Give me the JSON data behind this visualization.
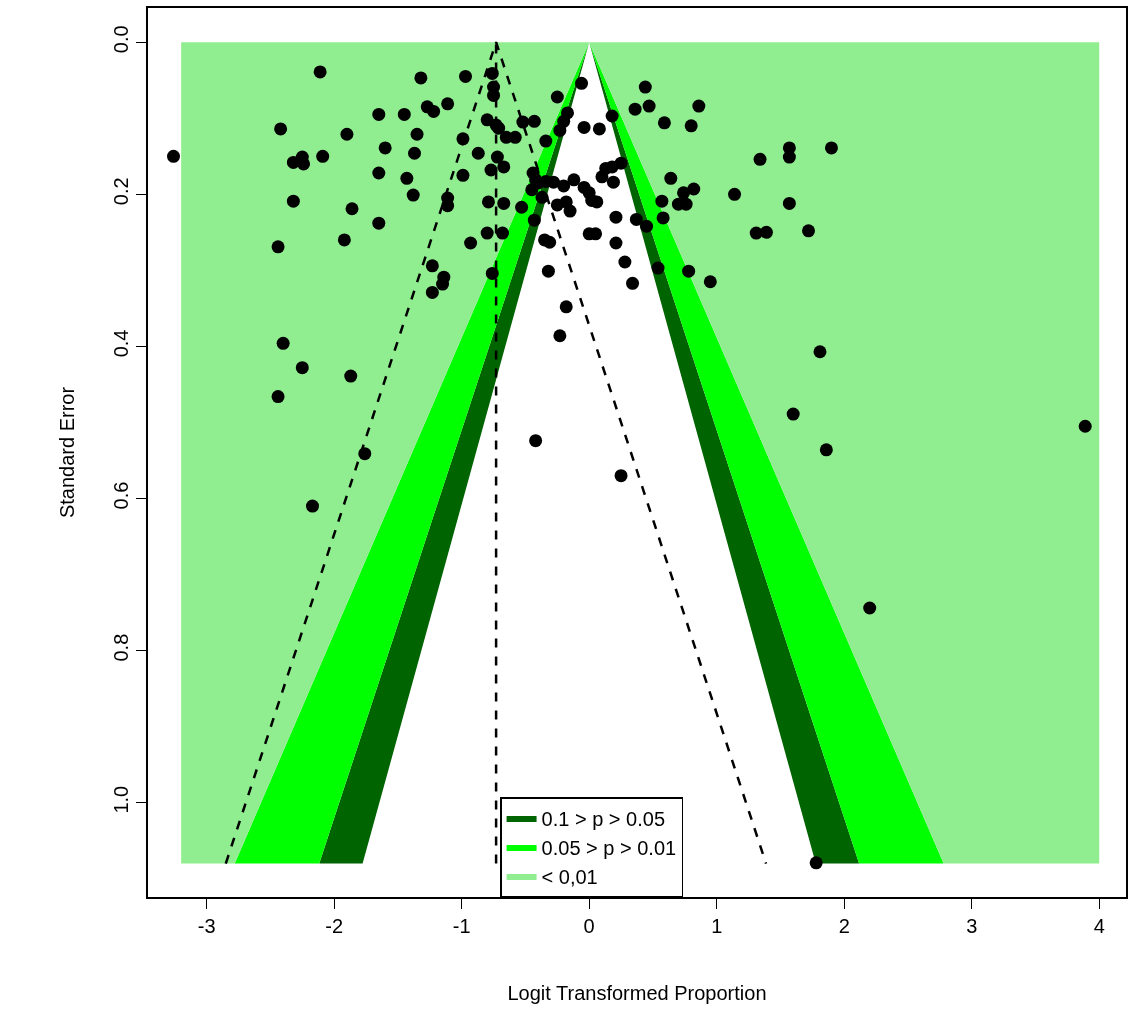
{
  "chart_data": {
    "type": "scatter",
    "xlabel": "Logit Transformed Proportion",
    "ylabel": "Standard Error",
    "xlim": [
      -3.46,
      4.21
    ],
    "ylim": [
      1.124,
      -0.045
    ],
    "xticks": [
      -3,
      -2,
      -1,
      0,
      1,
      2,
      3,
      4
    ],
    "yticks": [
      {
        "value": 0,
        "label": "0.0"
      },
      {
        "value": 0.2,
        "label": "0.2"
      },
      {
        "value": 0.4,
        "label": "0.4"
      },
      {
        "value": 0.6,
        "label": "0.6"
      },
      {
        "value": 0.8,
        "label": "0.8"
      },
      {
        "value": 1.0,
        "label": "1.0"
      }
    ],
    "legend": "bottom",
    "series": [
      {
        "type": "area",
        "name": "0.1 > p > 0.05",
        "color": "#006400",
        "x": [
          0,
          -2.117,
          -1.777,
          0,
          1.777,
          2.117,
          0
        ],
        "values": [
          0,
          1.08,
          1.08,
          0,
          1.08,
          1.08,
          0
        ]
      },
      {
        "type": "area",
        "name": "0.05 > p > 0.01",
        "color": "#00ff00",
        "x": [
          0,
          -2.78,
          -2.117,
          0,
          2.117,
          2.78,
          0
        ],
        "values": [
          0,
          1.08,
          1.08,
          0,
          1.08,
          1.08,
          0
        ]
      },
      {
        "type": "area",
        "name": "< 0,01",
        "color": "#90ee90",
        "x": [
          -3.2,
          -3.2,
          4.0,
          4.0,
          2.78,
          0,
          -2.78,
          -3.2
        ],
        "values": [
          1.08,
          0,
          0,
          1.08,
          1.08,
          0,
          1.08,
          1.08
        ]
      },
      {
        "type": "line",
        "color": "#000000",
        "line_style": "dashed",
        "x": [
          -2.85,
          -0.73,
          1.387
        ],
        "values": [
          1.08,
          0,
          1.08
        ]
      },
      {
        "type": "line",
        "color": "#000000",
        "line_style": "dashed",
        "x": [
          -0.73,
          -0.73
        ],
        "values": [
          1.08,
          0
        ]
      },
      {
        "color": "#000000",
        "marker": "circle",
        "x": [
          -2.11,
          -1.32,
          -1.27,
          -1.22,
          -1.11,
          -1.65,
          -1.45,
          -2.42,
          -1.9,
          -1.35,
          -1.6,
          -1.37,
          -3.26,
          -2.32,
          -2.25,
          -2.24,
          -2.09,
          -1.65,
          -1.43,
          -1.38,
          -2.32,
          -1.86,
          -1.65,
          -1.92,
          -2.44,
          -1.23,
          -1.14,
          -1.15,
          -1.23,
          -2.4,
          -2.25,
          -2.44,
          -1.87,
          -1.76,
          -2.17,
          -1.11,
          -1.11,
          -0.76,
          -0.97,
          -0.75,
          -0.75,
          -0.06,
          0.44,
          -0.25,
          -0.17,
          -0.2,
          -0.23,
          -0.8,
          -0.73,
          -0.71,
          -0.52,
          -0.43,
          -0.65,
          -0.58,
          -0.99,
          -0.34,
          -0.04,
          0.08,
          0.18,
          0.36,
          0.47,
          0.59,
          0.8,
          0.86,
          -0.87,
          -0.72,
          -0.77,
          -0.67,
          -0.99,
          -0.44,
          -0.42,
          -0.4,
          -0.34,
          -0.28,
          -0.2,
          -0.12,
          -0.04,
          0.13,
          0.18,
          0.25,
          0.1,
          0.19,
          0.64,
          0.74,
          0.82,
          0.7,
          0.76,
          0.57,
          -0.79,
          -0.67,
          -0.53,
          -0.45,
          -0.37,
          0.0,
          0.02,
          0.06,
          -0.25,
          -0.18,
          -0.15,
          -0.43,
          0.21,
          0.37,
          0.45,
          0.58,
          -0.8,
          -0.68,
          -0.93,
          -0.35,
          -0.31,
          0.0,
          0.05,
          0.21,
          0.28,
          0.54,
          0.78,
          0.95,
          -0.32,
          0.34,
          -0.76,
          -0.18,
          -0.23,
          -0.42,
          0.25,
          1.57,
          1.57,
          1.9,
          1.34,
          1.14,
          1.57,
          1.31,
          1.39,
          1.72,
          1.81,
          1.6,
          1.86,
          3.89,
          2.2,
          1.78
        ],
        "values": [
          0.039,
          0.047,
          0.085,
          0.091,
          0.081,
          0.095,
          0.095,
          0.114,
          0.121,
          0.121,
          0.139,
          0.146,
          0.15,
          0.158,
          0.151,
          0.16,
          0.15,
          0.172,
          0.179,
          0.201,
          0.209,
          0.219,
          0.238,
          0.26,
          0.269,
          0.294,
          0.309,
          0.318,
          0.329,
          0.396,
          0.428,
          0.466,
          0.439,
          0.541,
          0.61,
          0.205,
          0.215,
          0.041,
          0.045,
          0.059,
          0.07,
          0.054,
          0.059,
          0.072,
          0.093,
          0.104,
          0.116,
          0.102,
          0.109,
          0.113,
          0.105,
          0.104,
          0.125,
          0.125,
          0.127,
          0.13,
          0.112,
          0.114,
          0.097,
          0.088,
          0.084,
          0.106,
          0.11,
          0.084,
          0.146,
          0.151,
          0.168,
          0.164,
          0.175,
          0.172,
          0.181,
          0.185,
          0.183,
          0.184,
          0.189,
          0.181,
          0.191,
          0.166,
          0.164,
          0.159,
          0.177,
          0.184,
          0.179,
          0.198,
          0.193,
          0.213,
          0.213,
          0.209,
          0.21,
          0.212,
          0.217,
          0.194,
          0.204,
          0.198,
          0.208,
          0.21,
          0.214,
          0.21,
          0.222,
          0.234,
          0.23,
          0.233,
          0.242,
          0.231,
          0.251,
          0.251,
          0.264,
          0.26,
          0.263,
          0.252,
          0.252,
          0.264,
          0.289,
          0.297,
          0.301,
          0.315,
          0.301,
          0.317,
          0.304,
          0.348,
          0.386,
          0.524,
          0.57,
          0.139,
          0.151,
          0.139,
          0.154,
          0.2,
          0.212,
          0.251,
          0.25,
          0.248,
          0.407,
          0.489,
          0.536,
          0.505,
          0.744,
          1.079
        ]
      }
    ]
  }
}
